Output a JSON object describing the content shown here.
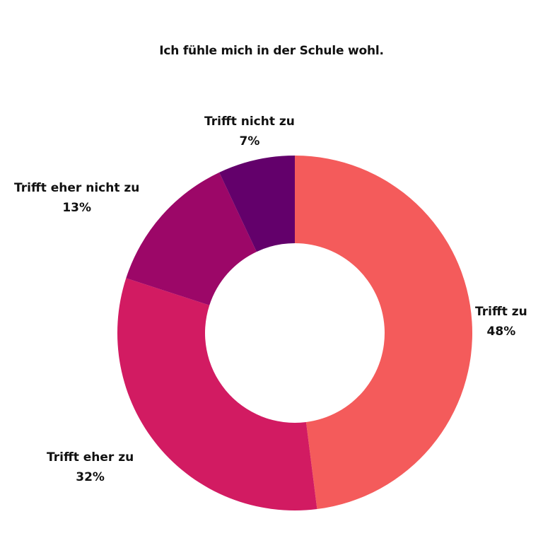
{
  "chart_data": {
    "type": "pie",
    "title": "Ich fühle mich in der Schule wohl.",
    "categories": [
      "Trifft zu",
      "Trifft eher zu",
      "Trifft eher nicht zu",
      "Trifft nicht zu"
    ],
    "values": [
      48,
      32,
      13,
      7
    ],
    "value_labels": [
      "48%",
      "32%",
      "13%",
      "7%"
    ],
    "colors": [
      "#F45B5B",
      "#D21B62",
      "#9C0768",
      "#63006B"
    ],
    "donut": true
  }
}
